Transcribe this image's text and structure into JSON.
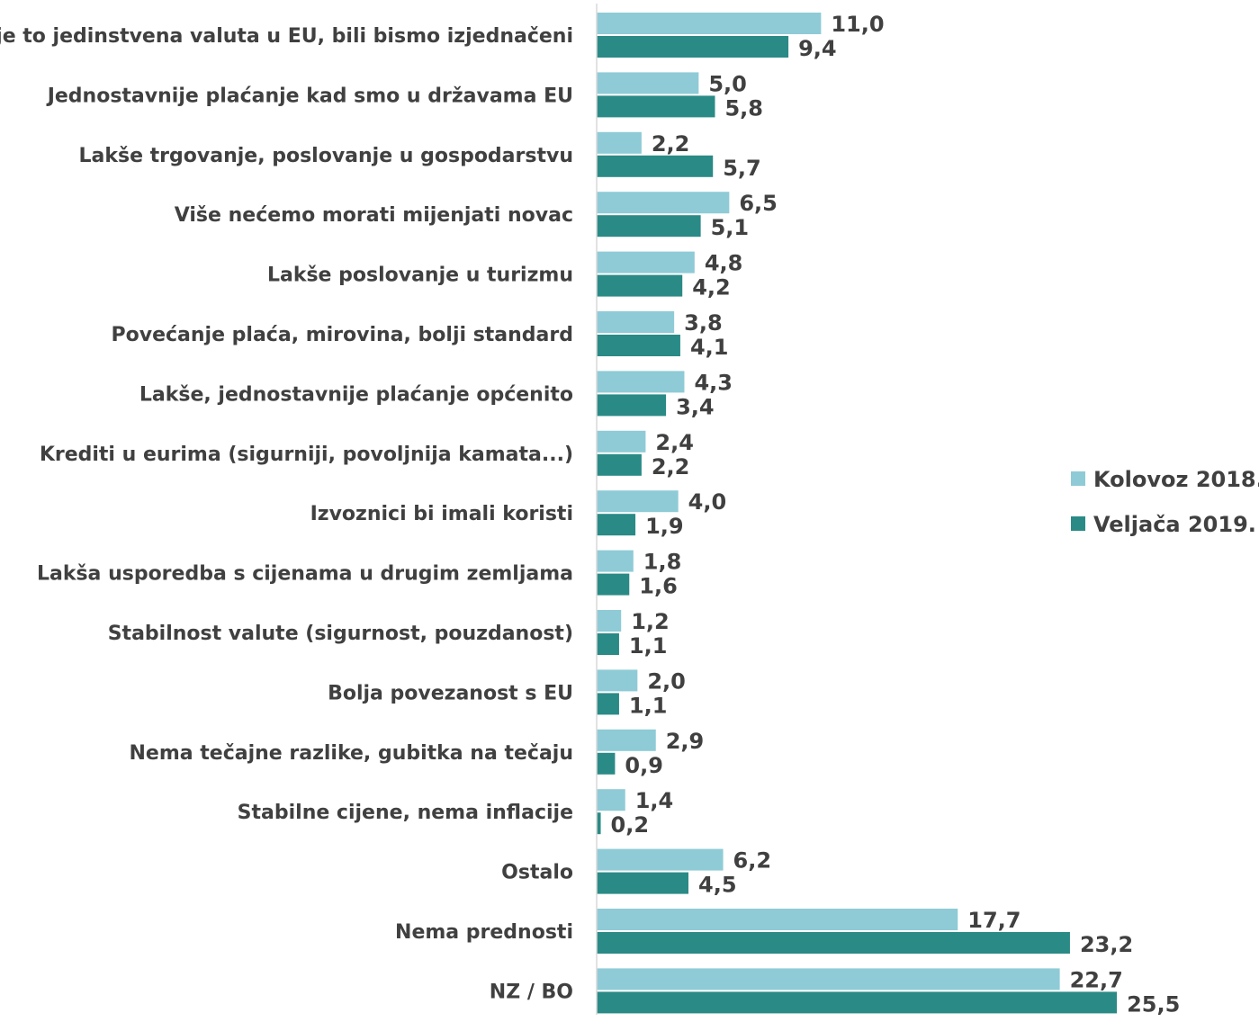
{
  "chart_data": {
    "type": "bar",
    "orientation": "horizontal",
    "categories": [
      "Jer je to jedinstvena valuta u EU, bili bismo izjednačeni",
      "Jednostavnije plaćanje kad smo u državama EU",
      "Lakše trgovanje, poslovanje u gospodarstvu",
      "Više nećemo morati mijenjati novac",
      "Lakše poslovanje u turizmu",
      "Povećanje plaća, mirovina, bolji standard",
      "Lakše, jednostavnije plaćanje općenito",
      "Krediti u eurima (sigurniji, povoljnija kamata...)",
      "Izvoznici bi imali koristi",
      "Lakša usporedba s cijenama u drugim zemljama",
      "Stabilnost valute (sigurnost, pouzdanost)",
      "Bolja povezanost s EU",
      "Nema tečajne razlike, gubitka na tečaju",
      "Stabilne cijene, nema inflacije",
      "Ostalo",
      "Nema prednosti",
      "NZ / BO"
    ],
    "series": [
      {
        "name": "Kolovoz 2018.",
        "color": "#8ecbd6",
        "values": [
          11.0,
          5.0,
          2.2,
          6.5,
          4.8,
          3.8,
          4.3,
          2.4,
          4.0,
          1.8,
          1.2,
          2.0,
          2.9,
          1.4,
          6.2,
          17.7,
          22.7
        ],
        "labels": [
          "11,0",
          "5,0",
          "2,2",
          "6,5",
          "4,8",
          "3,8",
          "4,3",
          "2,4",
          "4,0",
          "1,8",
          "1,2",
          "2,0",
          "2,9",
          "1,4",
          "6,2",
          "17,7",
          "22,7"
        ]
      },
      {
        "name": "Veljača 2019.",
        "color": "#2a8a86",
        "values": [
          9.4,
          5.8,
          5.7,
          5.1,
          4.2,
          4.1,
          3.4,
          2.2,
          1.9,
          1.6,
          1.1,
          1.1,
          0.9,
          0.2,
          4.5,
          23.2,
          25.5
        ],
        "labels": [
          "9,4",
          "5,8",
          "5,7",
          "5,1",
          "4,2",
          "4,1",
          "3,4",
          "2,2",
          "1,9",
          "1,6",
          "1,1",
          "1,1",
          "0,9",
          "0,2",
          "4,5",
          "23,2",
          "25,5"
        ]
      }
    ],
    "xlim": [
      0,
      25.5
    ],
    "grid": false,
    "legend_position": "right",
    "axis_color": "#d9d9d9",
    "label_color": "#404040"
  }
}
